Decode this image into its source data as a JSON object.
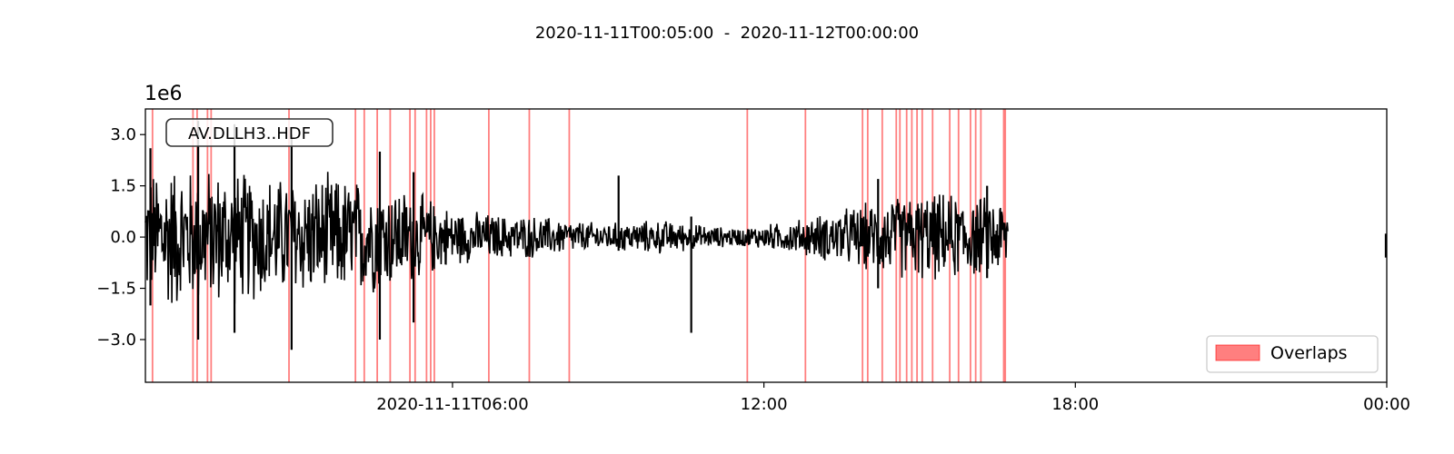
{
  "title": "2020-11-11T00:05:00  -  2020-11-12T00:00:00",
  "chart_data": {
    "type": "line",
    "trace_label": "AV.DLLH3..HDF",
    "y_scale_label": "1e6",
    "x_range_hours": [
      0.0833,
      24.0
    ],
    "ylim": [
      -3.6,
      3.0
    ],
    "y_ticks": [
      3.0,
      1.5,
      0.0,
      -1.5,
      -3.0
    ],
    "y_tick_labels": [
      "3.0",
      "1.5",
      "0.0",
      "−1.5",
      "−3.0"
    ],
    "x_ticks_hours": [
      6,
      12,
      18,
      24
    ],
    "x_tick_labels": [
      "2020-11-11T06:00",
      "12:00",
      "18:00",
      "00:00"
    ],
    "legend": {
      "label": "Overlaps",
      "placement": "lower right"
    },
    "overlap_color": "#ff0000",
    "trace_color": "#000000",
    "overlap_times_hours": [
      0.22,
      1.0,
      1.08,
      1.28,
      1.35,
      2.85,
      4.13,
      4.3,
      4.55,
      4.8,
      5.18,
      5.28,
      5.5,
      5.58,
      5.65,
      6.7,
      7.48,
      8.25,
      11.68,
      12.8,
      13.9,
      14.0,
      14.28,
      14.55,
      14.62,
      14.75,
      14.85,
      14.95,
      15.05,
      15.25,
      15.58,
      15.75,
      15.98,
      16.08,
      16.18,
      16.62,
      16.65
    ],
    "envelope": {
      "time_hours": [
        0.08,
        0.5,
        1.0,
        1.5,
        2.0,
        2.5,
        3.0,
        3.5,
        4.0,
        4.5,
        5.0,
        5.5,
        6.0,
        6.5,
        7.0,
        7.5,
        8.0,
        8.5,
        9.0,
        9.5,
        10.0,
        10.5,
        11.0,
        11.5,
        12.0,
        12.5,
        13.0,
        13.5,
        14.0,
        14.5,
        15.0,
        15.5,
        16.0,
        16.5,
        16.7
      ],
      "amplitude_e6": [
        2.0,
        2.4,
        2.2,
        2.2,
        2.1,
        2.0,
        1.9,
        2.0,
        1.9,
        1.8,
        1.6,
        1.3,
        0.9,
        0.8,
        0.7,
        0.7,
        0.6,
        0.5,
        0.45,
        0.5,
        0.55,
        0.45,
        0.35,
        0.3,
        0.4,
        0.5,
        0.7,
        0.9,
        1.1,
        1.3,
        1.4,
        1.4,
        1.3,
        1.3,
        1.2
      ]
    },
    "spikes": [
      {
        "time_hours": 0.18,
        "min": -2.0,
        "max": 2.6
      },
      {
        "time_hours": 1.1,
        "min": -3.0,
        "max": 3.4
      },
      {
        "time_hours": 1.8,
        "min": -2.8,
        "max": 3.3
      },
      {
        "time_hours": 2.9,
        "min": -3.3,
        "max": 3.0
      },
      {
        "time_hours": 4.6,
        "min": -3.0,
        "max": 2.5
      },
      {
        "time_hours": 5.25,
        "min": -2.5,
        "max": 1.9
      },
      {
        "time_hours": 9.2,
        "min": -0.4,
        "max": 1.8
      },
      {
        "time_hours": 10.6,
        "min": -2.8,
        "max": 0.6
      },
      {
        "time_hours": 14.2,
        "min": -1.5,
        "max": 1.7
      },
      {
        "time_hours": 16.3,
        "min": -1.2,
        "max": 1.5
      }
    ],
    "end_segment": {
      "time_hours": 23.98,
      "min": -0.6,
      "max": 0.1
    }
  }
}
